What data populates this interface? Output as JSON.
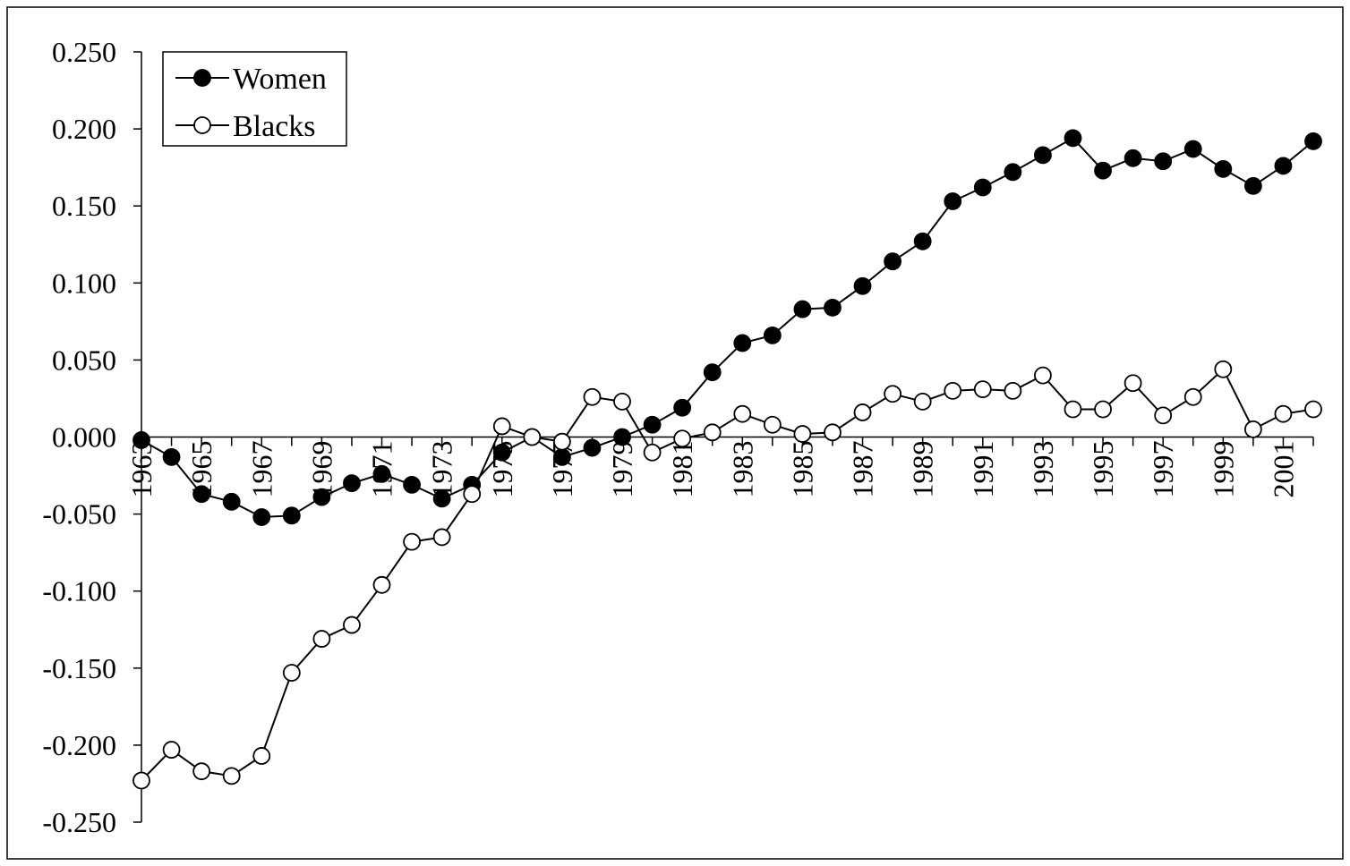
{
  "chart_data": {
    "type": "line",
    "categories": [
      "1963",
      null,
      "1965",
      null,
      "1967",
      null,
      "1969",
      null,
      "1971",
      null,
      "1973",
      null,
      "1975",
      null,
      "1977",
      null,
      "1979",
      null,
      "1981",
      null,
      "1983",
      null,
      "1985",
      null,
      "1987",
      null,
      "1989",
      null,
      "1991",
      null,
      "1993",
      null,
      "1995",
      null,
      "1997",
      null,
      "1999",
      null,
      "2001",
      null
    ],
    "series": [
      {
        "name": "Women",
        "color": "#000000",
        "marker_fill": "#000000",
        "values": [
          -0.002,
          -0.013,
          -0.037,
          -0.042,
          -0.052,
          -0.051,
          -0.039,
          -0.03,
          -0.024,
          -0.031,
          -0.04,
          -0.031,
          -0.01,
          0.0,
          -0.013,
          -0.007,
          0.0,
          0.008,
          0.019,
          0.042,
          0.061,
          0.066,
          0.083,
          0.084,
          0.098,
          0.114,
          0.127,
          0.153,
          0.162,
          0.172,
          0.183,
          0.194,
          0.173,
          0.181,
          0.179,
          0.187,
          0.174,
          0.163,
          0.176,
          0.192
        ]
      },
      {
        "name": "Blacks",
        "color": "#000000",
        "marker_fill": "#ffffff",
        "values": [
          -0.223,
          -0.203,
          -0.217,
          -0.22,
          -0.207,
          -0.153,
          -0.131,
          -0.122,
          -0.096,
          -0.068,
          -0.065,
          -0.037,
          0.007,
          0.0,
          -0.003,
          0.026,
          0.023,
          -0.01,
          -0.001,
          0.003,
          0.015,
          0.008,
          0.002,
          0.003,
          0.016,
          0.028,
          0.023,
          0.03,
          0.031,
          0.03,
          0.04,
          0.018,
          0.018,
          0.035,
          0.014,
          0.026,
          0.044,
          0.005,
          0.015,
          0.018
        ]
      }
    ],
    "ylim": [
      -0.25,
      0.25
    ],
    "yticks": [
      {
        "value": 0.25,
        "label": "0.250"
      },
      {
        "value": 0.2,
        "label": "0.200"
      },
      {
        "value": 0.15,
        "label": "0.150"
      },
      {
        "value": 0.1,
        "label": "0.100"
      },
      {
        "value": 0.05,
        "label": "0.050"
      },
      {
        "value": 0,
        "label": "0.000"
      },
      {
        "value": -0.05,
        "label": "-0.050"
      },
      {
        "value": -0.1,
        "label": "-0.100"
      },
      {
        "value": -0.15,
        "label": "-0.150"
      },
      {
        "value": -0.2,
        "label": "-0.200"
      },
      {
        "value": -0.25,
        "label": "-0.250"
      }
    ],
    "grid": false,
    "legend": "upper-left"
  }
}
